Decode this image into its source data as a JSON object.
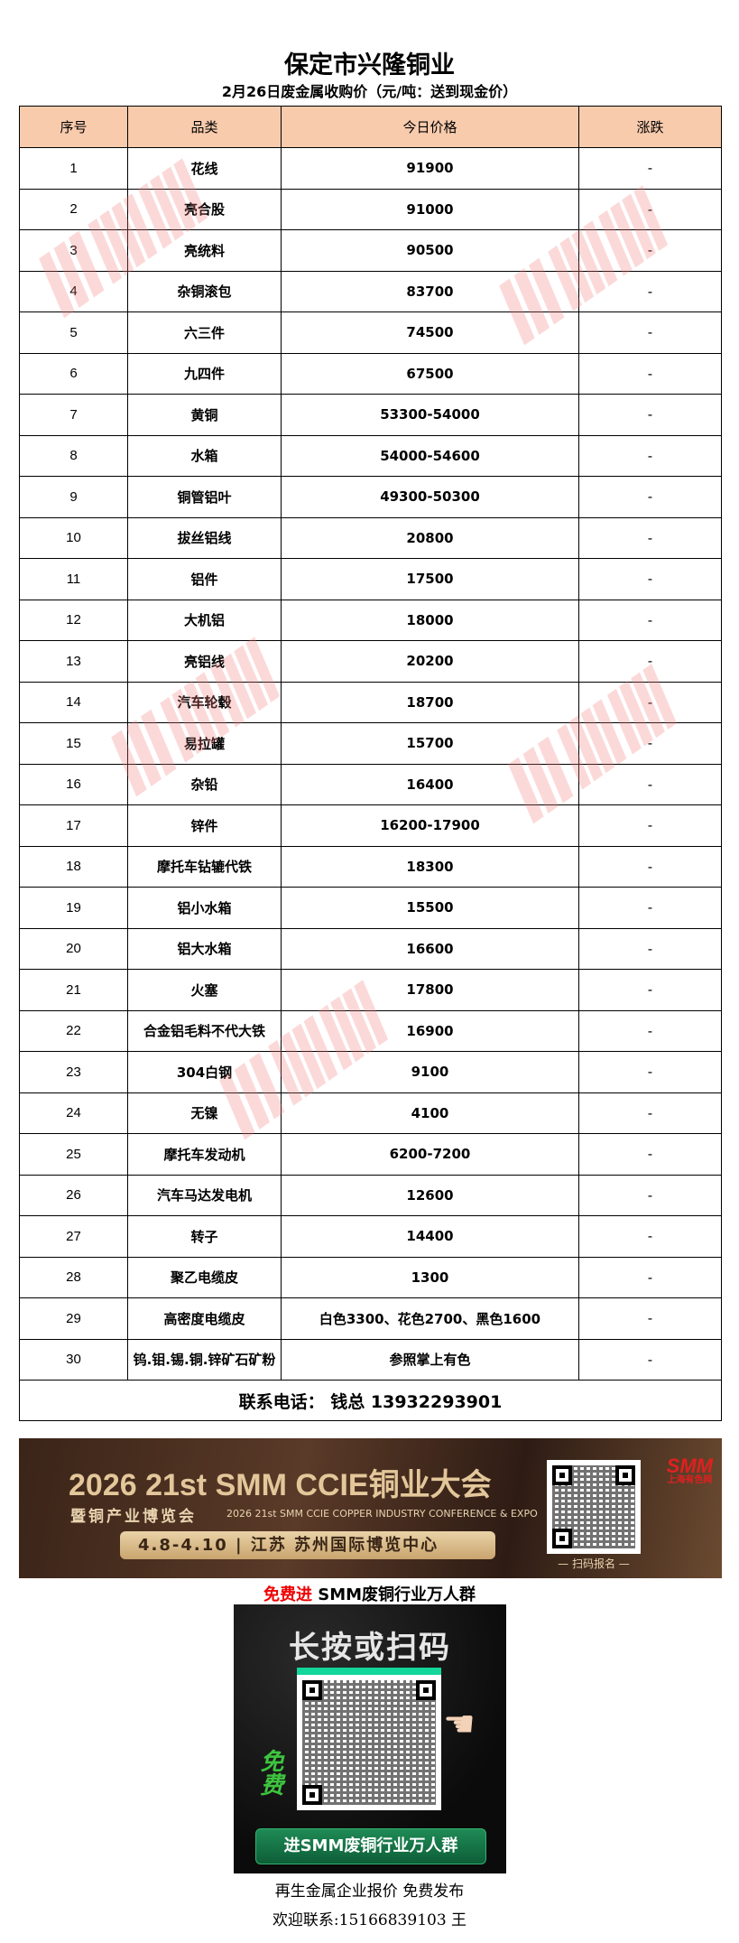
{
  "title": "保定市兴隆铜业",
  "subtitle": "2月26日废金属收购价（元/吨：送到现金价）",
  "table": {
    "headers": [
      "序号",
      "品类",
      "今日价格",
      "涨跌"
    ],
    "rows": [
      [
        "1",
        "花线",
        "91900",
        "-"
      ],
      [
        "2",
        "亮合股",
        "91000",
        "-"
      ],
      [
        "3",
        "亮统料",
        "90500",
        "-"
      ],
      [
        "4",
        "杂铜滚包",
        "83700",
        "-"
      ],
      [
        "5",
        "六三件",
        "74500",
        "-"
      ],
      [
        "6",
        "九四件",
        "67500",
        "-"
      ],
      [
        "7",
        "黄铜",
        "53300-54000",
        "-"
      ],
      [
        "8",
        "水箱",
        "54000-54600",
        "-"
      ],
      [
        "9",
        "铜管铝叶",
        "49300-50300",
        "-"
      ],
      [
        "10",
        "拔丝铝线",
        "20800",
        "-"
      ],
      [
        "11",
        "铝件",
        "17500",
        "-"
      ],
      [
        "12",
        "大机铝",
        "18000",
        "-"
      ],
      [
        "13",
        "亮铝线",
        "20200",
        "-"
      ],
      [
        "14",
        "汽车轮毂",
        "18700",
        "-"
      ],
      [
        "15",
        "易拉罐",
        "15700",
        "-"
      ],
      [
        "16",
        "杂铅",
        "16400",
        "-"
      ],
      [
        "17",
        "锌件",
        "16200-17900",
        "-"
      ],
      [
        "18",
        "摩托车钻辘代铁",
        "18300",
        "-"
      ],
      [
        "19",
        "铝小水箱",
        "15500",
        "-"
      ],
      [
        "20",
        "铝大水箱",
        "16600",
        "-"
      ],
      [
        "21",
        "火塞",
        "17800",
        "-"
      ],
      [
        "22",
        "合金铝毛料不代大铁",
        "16900",
        "-"
      ],
      [
        "23",
        "304白钢",
        "9100",
        "-"
      ],
      [
        "24",
        "无镍",
        "4100",
        "-"
      ],
      [
        "25",
        "摩托车发动机",
        "6200-7200",
        "-"
      ],
      [
        "26",
        "汽车马达发电机",
        "12600",
        "-"
      ],
      [
        "27",
        "转子",
        "14400",
        "-"
      ],
      [
        "28",
        "聚乙电缆皮",
        "1300",
        "-"
      ],
      [
        "29",
        "高密度电缆皮",
        "白色3300、花色2700、黑色1600",
        "-"
      ],
      [
        "30",
        "钨.钼.锡.铜.锌矿石矿粉",
        "参照掌上有色",
        "-"
      ]
    ],
    "contact": "联系电话：  钱总 13932293901"
  },
  "watermark": "SMM",
  "banner": {
    "year_title": "2026 21st SMM CCIE铜业大会",
    "subtitle": "暨铜产业博览会",
    "english": "2026 21st SMM CCIE COPPER INDUSTRY CONFERENCE & EXPO",
    "date_venue": "4.8-4.10  |  江苏 苏州国际博览中心",
    "qr_label": "— 扫码报名 —",
    "logo": "SMM",
    "logo_sub": "上海有色网"
  },
  "join": {
    "free": "免费进",
    "rest": " SMM废铜行业万人群"
  },
  "promo": {
    "title": "长按或扫码",
    "free": "免费",
    "button": "进SMM废铜行业万人群"
  },
  "footer": {
    "line1": "再生金属企业报价  免费发布",
    "line2": "欢迎联系:15166839103  王"
  },
  "colors": {
    "header_bg": "#f8cbad",
    "watermark": "#f57878",
    "accent_red": "#e00000",
    "promo_green": "#1f8a55"
  }
}
